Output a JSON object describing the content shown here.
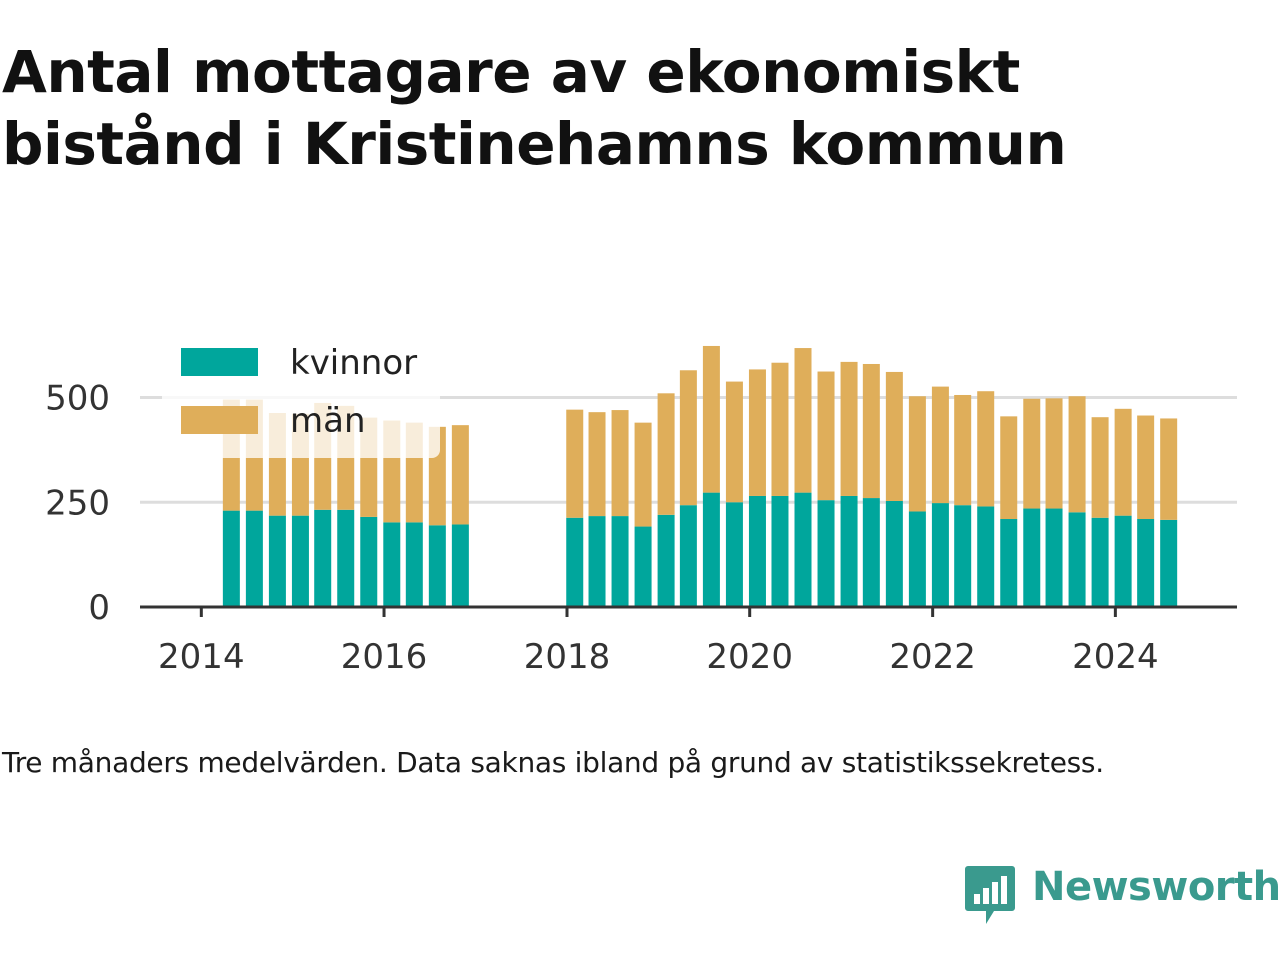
{
  "title": "Antal mottagare av ekonomiskt bistånd i Kristinehamns kommun",
  "caption": "Tre månaders medelvärden. Data saknas ibland på grund av statistikssekretess.",
  "brand": {
    "name": "Newsworthy",
    "icon": "newsworthy-logo-icon",
    "color": "#3a9a8e"
  },
  "chart_data": {
    "type": "bar",
    "stacked": true,
    "x": [
      "2014-05-01",
      "2014-08-01",
      "2014-11-01",
      "2015-02-01",
      "2015-05-01",
      "2015-08-01",
      "2015-11-01",
      "2016-02-01",
      "2016-05-01",
      "2016-08-01",
      "2016-11-01",
      "2018-02-01",
      "2018-05-01",
      "2018-08-01",
      "2018-11-01",
      "2019-02-01",
      "2019-05-01",
      "2019-08-01",
      "2019-11-01",
      "2020-02-01",
      "2020-05-01",
      "2020-08-01",
      "2020-11-01",
      "2021-02-01",
      "2021-05-01",
      "2021-08-01",
      "2021-11-01",
      "2022-02-01",
      "2022-05-01",
      "2022-08-01",
      "2022-11-01",
      "2023-02-01",
      "2023-05-01",
      "2023-08-01",
      "2023-11-01",
      "2024-02-01",
      "2024-05-01",
      "2024-08-01"
    ],
    "series": [
      {
        "name": "kvinnor",
        "color": "#00a69c",
        "values": [
          230,
          230,
          218,
          218,
          232,
          232,
          215,
          202,
          202,
          195,
          197,
          213,
          217,
          217,
          192,
          220,
          243,
          273,
          250,
          265,
          265,
          273,
          255,
          265,
          260,
          253,
          228,
          248,
          243,
          240,
          210,
          235,
          235,
          226,
          213,
          218,
          210,
          208
        ]
      },
      {
        "name": "män",
        "color": "#dfae5a",
        "values": [
          265,
          265,
          245,
          243,
          255,
          248,
          237,
          243,
          238,
          235,
          237,
          258,
          248,
          253,
          248,
          290,
          322,
          350,
          288,
          302,
          318,
          345,
          307,
          320,
          320,
          308,
          275,
          278,
          263,
          275,
          245,
          262,
          263,
          277,
          240,
          255,
          247,
          242
        ]
      }
    ],
    "x_ticks": [
      "2014",
      "2016",
      "2018",
      "2020",
      "2022",
      "2024"
    ],
    "y_ticks": [
      0,
      250,
      500
    ],
    "ylim": [
      0,
      640
    ],
    "xlim": [
      "2013-05-01",
      "2025-05-01"
    ],
    "grid": true,
    "legend": {
      "placement": "top-left"
    },
    "title": "",
    "xlabel": "",
    "ylabel": ""
  }
}
